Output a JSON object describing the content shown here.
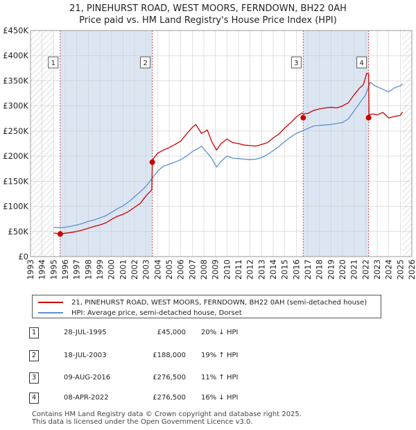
{
  "title_line1": "21, PINEHURST ROAD, WEST MOORS, FERNDOWN, BH22 0AH",
  "title_line2": "Price paid vs. HM Land Registry's House Price Index (HPI)",
  "colors": {
    "property": "#cc0000",
    "hpi": "#5b8fcf",
    "shade": "#dce6f3",
    "grid": "#cccccc",
    "marker_line": "#dd4444"
  },
  "chart_data": {
    "type": "line",
    "title": "21, PINEHURST ROAD, WEST MOORS, FERNDOWN, BH22 0AH",
    "subtitle": "Price paid vs. HM Land Registry's House Price Index (HPI)",
    "xlabel": "",
    "ylabel": "",
    "xlim": [
      1993,
      2026
    ],
    "ylim": [
      0,
      450000
    ],
    "y_ticks": [
      0,
      50000,
      100000,
      150000,
      200000,
      250000,
      300000,
      350000,
      400000,
      450000
    ],
    "y_tick_labels": [
      "£0",
      "£50K",
      "£100K",
      "£150K",
      "£200K",
      "£250K",
      "£300K",
      "£350K",
      "£400K",
      "£450K"
    ],
    "x_ticks": [
      1993,
      1994,
      1995,
      1996,
      1997,
      1998,
      1999,
      2000,
      2001,
      2002,
      2003,
      2004,
      2005,
      2006,
      2007,
      2008,
      2009,
      2010,
      2011,
      2012,
      2013,
      2014,
      2015,
      2016,
      2017,
      2018,
      2019,
      2020,
      2021,
      2022,
      2023,
      2024,
      2025,
      2026
    ],
    "hatched_ranges": [
      [
        1993,
        1995.0
      ],
      [
        2025.2,
        2026
      ]
    ],
    "series": [
      {
        "name": "21, PINEHURST ROAD, WEST MOORS, FERNDOWN, BH22 0AH (semi-detached house)",
        "x": [
          1995.0,
          1995.57,
          1995.6,
          1996,
          1996.5,
          1997,
          1997.5,
          1998,
          1998.5,
          1999,
          1999.5,
          2000,
          2000.5,
          2001,
          2001.5,
          2002,
          2002.5,
          2003,
          2003.5,
          2003.54,
          2003.6,
          2004,
          2004.5,
          2005,
          2005.5,
          2006,
          2006.5,
          2007,
          2007.3,
          2007.8,
          2008.3,
          2008.7,
          2009.1,
          2009.5,
          2010,
          2010.5,
          2011,
          2011.5,
          2012,
          2012.5,
          2013,
          2013.5,
          2014,
          2014.5,
          2015,
          2015.5,
          2016,
          2016.5,
          2016.6,
          2017,
          2017.5,
          2018,
          2018.5,
          2019,
          2019.5,
          2020,
          2020.5,
          2021,
          2021.5,
          2021.8,
          2022.1,
          2022.26,
          2022.3,
          2022.6,
          2023,
          2023.5,
          2024,
          2024.5,
          2025,
          2025.2
        ],
        "y": [
          47000,
          45500,
          45000,
          46500,
          48000,
          50000,
          53000,
          56500,
          60000,
          63000,
          67000,
          74000,
          80000,
          84000,
          90000,
          98000,
          106000,
          121000,
          133000,
          190000,
          194000,
          206000,
          212000,
          217000,
          223000,
          230000,
          244000,
          257000,
          263000,
          245000,
          252000,
          228000,
          212000,
          225000,
          234000,
          227000,
          225000,
          222000,
          221000,
          220000,
          223000,
          227000,
          236000,
          244000,
          256000,
          266000,
          278000,
          286000,
          284000,
          285000,
          291000,
          294000,
          296000,
          297000,
          296000,
          300000,
          306000,
          322000,
          336000,
          342000,
          365000,
          363000,
          282000,
          284000,
          282000,
          287000,
          276000,
          279000,
          281000,
          288000
        ]
      },
      {
        "name": "HPI: Average price, semi-detached house, Dorset",
        "x": [
          1995.0,
          1995.5,
          1996,
          1996.5,
          1997,
          1997.5,
          1998,
          1998.5,
          1999,
          1999.5,
          2000,
          2000.5,
          2001,
          2001.5,
          2002,
          2002.5,
          2003,
          2003.5,
          2004,
          2004.5,
          2005,
          2005.5,
          2006,
          2006.5,
          2007,
          2007.5,
          2007.8,
          2008.3,
          2008.7,
          2009.1,
          2009.5,
          2010,
          2010.5,
          2011,
          2011.5,
          2012,
          2012.5,
          2013,
          2013.5,
          2014,
          2014.5,
          2015,
          2015.5,
          2016,
          2016.5,
          2017,
          2017.5,
          2018,
          2018.5,
          2019,
          2019.5,
          2020,
          2020.5,
          2021,
          2021.5,
          2022,
          2022.4,
          2022.8,
          2023,
          2023.5,
          2024,
          2024.5,
          2025,
          2025.2
        ],
        "y": [
          58000,
          57500,
          58500,
          60500,
          63000,
          66000,
          70000,
          73000,
          77000,
          81000,
          88000,
          95000,
          101000,
          109000,
          119000,
          129000,
          140000,
          155000,
          170000,
          180000,
          184000,
          188000,
          193000,
          200000,
          209000,
          215000,
          220000,
          206000,
          195000,
          178000,
          190000,
          200000,
          196000,
          195000,
          194000,
          193000,
          194000,
          197000,
          203000,
          211000,
          219000,
          229000,
          238000,
          245000,
          250000,
          255000,
          260000,
          261000,
          262000,
          263000,
          265000,
          267000,
          274000,
          290000,
          306000,
          322000,
          347000,
          340000,
          338000,
          333000,
          328000,
          336000,
          340000,
          344000
        ]
      }
    ],
    "sales": [
      {
        "label": "1",
        "x": 1995.57,
        "y": 45000
      },
      {
        "label": "2",
        "x": 2003.54,
        "y": 188000
      },
      {
        "label": "3",
        "x": 2016.6,
        "y": 276500
      },
      {
        "label": "4",
        "x": 2022.26,
        "y": 276500
      }
    ]
  },
  "legend": {
    "property": "21, PINEHURST ROAD, WEST MOORS, FERNDOWN, BH22 0AH (semi-detached house)",
    "hpi": "HPI: Average price, semi-detached house, Dorset"
  },
  "transactions": [
    {
      "num": "1",
      "date": "28-JUL-1995",
      "price": "£45,000",
      "hpi": "20% ↓ HPI"
    },
    {
      "num": "2",
      "date": "18-JUL-2003",
      "price": "£188,000",
      "hpi": "19% ↑ HPI"
    },
    {
      "num": "3",
      "date": "09-AUG-2016",
      "price": "£276,500",
      "hpi": "11% ↑ HPI"
    },
    {
      "num": "4",
      "date": "08-APR-2022",
      "price": "£276,500",
      "hpi": "16% ↓ HPI"
    }
  ],
  "footer_line1": "Contains HM Land Registry data © Crown copyright and database right 2025.",
  "footer_line2": "This data is licensed under the Open Government Licence v3.0."
}
